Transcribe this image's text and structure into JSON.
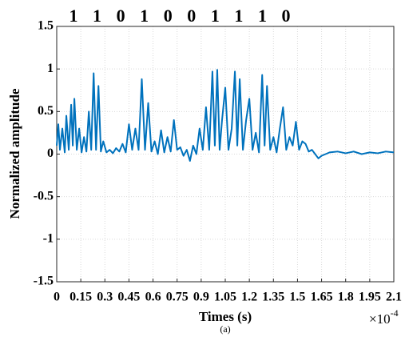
{
  "chart_data": {
    "type": "line",
    "bits": [
      "1",
      "1",
      "0",
      "1",
      "0",
      "0",
      "1",
      "1",
      "1",
      "0"
    ],
    "xlabel": "Times (s)",
    "ylabel": "Normalized amplitude",
    "x_multiplier": {
      "base": "×10",
      "exponent": "-4"
    },
    "caption": "(a)",
    "xlim": [
      0,
      2.1
    ],
    "ylim": [
      -1.5,
      1.5
    ],
    "xticks": [
      0,
      0.15,
      0.3,
      0.45,
      0.6,
      0.75,
      0.9,
      1.05,
      1.2,
      1.35,
      1.5,
      1.65,
      1.8,
      1.95,
      2.1
    ],
    "yticks": [
      -1.5,
      -1,
      -0.5,
      0,
      0.5,
      1,
      1.5
    ],
    "grid": true,
    "x": [
      0,
      0.01,
      0.02,
      0.035,
      0.05,
      0.06,
      0.075,
      0.09,
      0.1,
      0.11,
      0.125,
      0.14,
      0.155,
      0.17,
      0.185,
      0.2,
      0.215,
      0.23,
      0.245,
      0.26,
      0.275,
      0.29,
      0.31,
      0.33,
      0.35,
      0.37,
      0.39,
      0.41,
      0.43,
      0.45,
      0.47,
      0.49,
      0.51,
      0.53,
      0.55,
      0.57,
      0.59,
      0.61,
      0.63,
      0.65,
      0.67,
      0.69,
      0.71,
      0.73,
      0.75,
      0.77,
      0.79,
      0.81,
      0.83,
      0.85,
      0.87,
      0.89,
      0.91,
      0.93,
      0.95,
      0.97,
      0.985,
      1.0,
      1.015,
      1.03,
      1.05,
      1.07,
      1.09,
      1.11,
      1.125,
      1.14,
      1.16,
      1.18,
      1.2,
      1.22,
      1.24,
      1.26,
      1.28,
      1.295,
      1.31,
      1.33,
      1.35,
      1.37,
      1.39,
      1.41,
      1.43,
      1.45,
      1.47,
      1.49,
      1.51,
      1.53,
      1.55,
      1.57,
      1.59,
      1.61,
      1.63,
      1.65,
      1.7,
      1.75,
      1.8,
      1.85,
      1.9,
      1.95,
      2.0,
      2.05,
      2.1
    ],
    "series": [
      {
        "color": "#0072bd",
        "values": [
          0.1,
          0.35,
          0.05,
          0.3,
          0.02,
          0.45,
          0.05,
          0.58,
          0.1,
          0.65,
          0.05,
          0.3,
          0.02,
          0.2,
          0.03,
          0.5,
          0.05,
          0.95,
          0.05,
          0.8,
          0.03,
          0.15,
          0.02,
          0.05,
          0.01,
          0.07,
          0.03,
          0.12,
          0.02,
          0.35,
          0.05,
          0.3,
          0.05,
          0.88,
          0.05,
          0.6,
          0.03,
          0.15,
          0.0,
          0.28,
          0.02,
          0.2,
          0.03,
          0.4,
          0.05,
          0.08,
          -0.02,
          0.05,
          -0.08,
          0.1,
          0.0,
          0.3,
          0.05,
          0.55,
          0.05,
          0.97,
          0.1,
          0.99,
          0.05,
          0.4,
          0.78,
          0.05,
          0.3,
          0.97,
          0.1,
          0.88,
          0.05,
          0.4,
          0.65,
          0.05,
          0.25,
          0.02,
          0.93,
          0.1,
          0.8,
          0.05,
          0.2,
          0.02,
          0.3,
          0.55,
          0.05,
          0.2,
          0.1,
          0.38,
          0.05,
          0.15,
          0.12,
          0.03,
          0.05,
          0.0,
          -0.05,
          -0.02,
          0.02,
          0.03,
          0.01,
          0.03,
          0.0,
          0.02,
          0.01,
          0.03,
          0.02
        ]
      }
    ]
  }
}
